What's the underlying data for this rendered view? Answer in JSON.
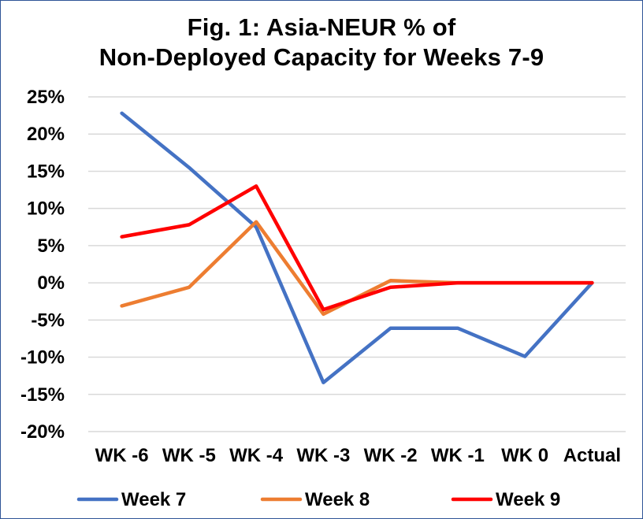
{
  "title_lines": [
    "Fig. 1: Asia-NEUR % of",
    "Non-Deployed Capacity for Weeks 7-9"
  ],
  "colors": {
    "border": "#2f5597",
    "gridline": "#d9d9d9"
  },
  "chart_data": {
    "type": "line",
    "title": "Fig. 1: Asia-NEUR % of Non-Deployed Capacity for Weeks 7-9",
    "xlabel": "",
    "ylabel": "",
    "categories": [
      "WK -6",
      "WK -5",
      "WK -4",
      "WK -3",
      "WK -2",
      "WK -1",
      "WK 0",
      "Actual"
    ],
    "ylim": [
      -20,
      25
    ],
    "ytick_step": 5,
    "yticks": [
      "-20%",
      "-15%",
      "-10%",
      "-5%",
      "0%",
      "5%",
      "10%",
      "15%",
      "20%",
      "25%"
    ],
    "grid": true,
    "legend_position": "bottom",
    "series": [
      {
        "name": "Week 7",
        "color": "#4472c4",
        "values": [
          22.8,
          15.5,
          7.5,
          -13.4,
          -6.1,
          -6.1,
          -9.9,
          0.0
        ]
      },
      {
        "name": "Week 8",
        "color": "#ed7d31",
        "values": [
          -3.1,
          -0.6,
          8.2,
          -4.2,
          0.3,
          0.0,
          0.0,
          0.0
        ]
      },
      {
        "name": "Week 9",
        "color": "#ff0000",
        "values": [
          6.2,
          7.8,
          13.0,
          -3.6,
          -0.6,
          0.0,
          0.0,
          0.0
        ]
      }
    ]
  }
}
